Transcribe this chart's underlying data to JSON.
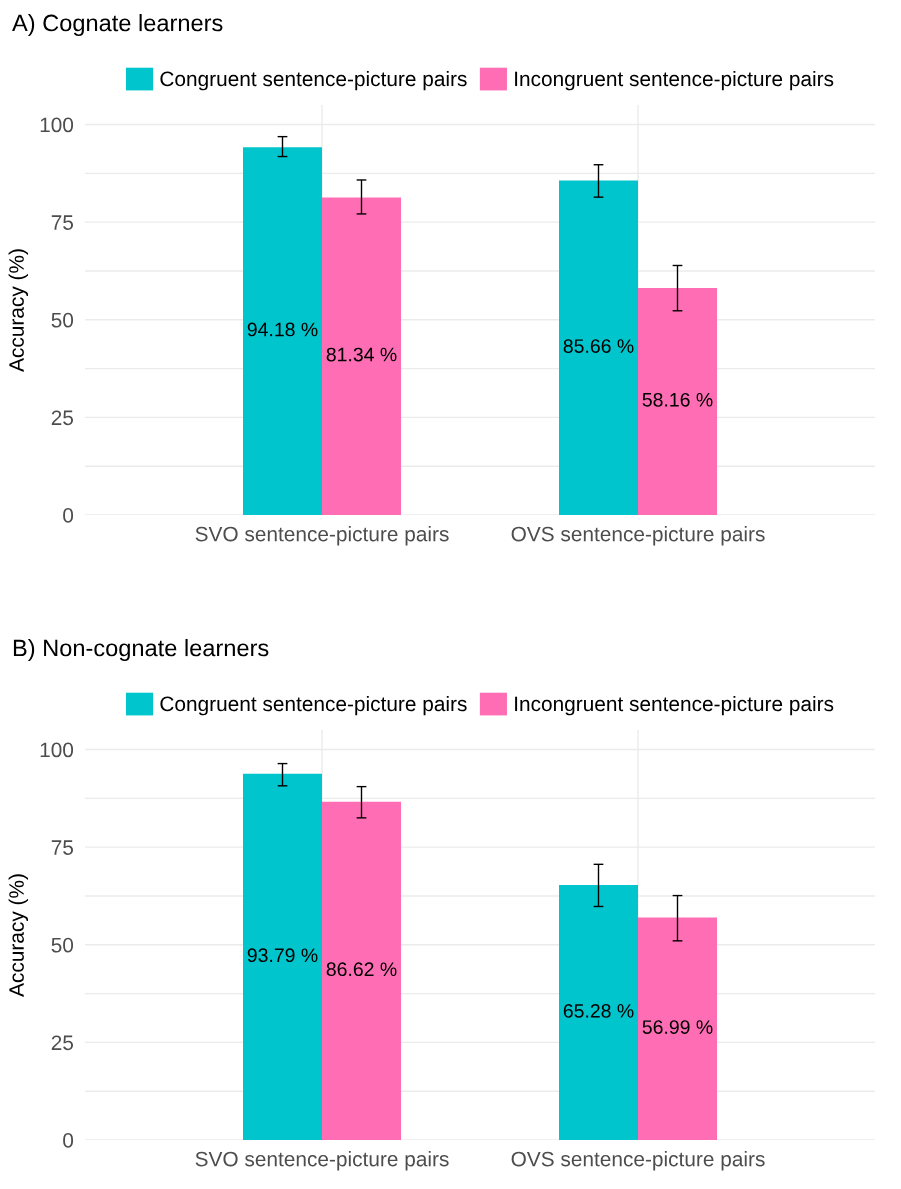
{
  "chart_data": [
    {
      "type": "bar",
      "title": "A) Cognate learners",
      "ylabel": "Accuracy (%)",
      "categories": [
        "SVO sentence-picture pairs",
        "OVS sentence-picture pairs"
      ],
      "series": [
        {
          "name": "Congruent sentence-picture pairs",
          "color": "#00c5cd",
          "values": [
            94.18,
            85.66
          ],
          "errors": [
            [
              91.8,
              96.9
            ],
            [
              81.4,
              89.7
            ]
          ],
          "value_labels": [
            "94.18 %",
            "85.66 %"
          ]
        },
        {
          "name": "Incongruent sentence-picture pairs",
          "color": "#ff6eb4",
          "values": [
            81.34,
            58.16
          ],
          "errors": [
            [
              77.1,
              85.8
            ],
            [
              52.3,
              63.9
            ]
          ],
          "value_labels": [
            "81.34 %",
            "58.16 %"
          ]
        }
      ],
      "ylim": [
        0,
        105
      ],
      "yticks": [
        0,
        {
          "value": 12.5,
          "label": null
        },
        25,
        {
          "value": 37.5,
          "label": null
        },
        50,
        {
          "value": 62.5,
          "label": null
        },
        75,
        {
          "value": 87.5,
          "label": null
        },
        100
      ],
      "grid": true,
      "legend": "top"
    },
    {
      "type": "bar",
      "title": "B) Non-cognate learners",
      "ylabel": "Accuracy (%)",
      "categories": [
        "SVO sentence-picture pairs",
        "OVS sentence-picture pairs"
      ],
      "series": [
        {
          "name": "Congruent sentence-picture pairs",
          "color": "#00c5cd",
          "values": [
            93.79,
            65.28
          ],
          "errors": [
            [
              90.7,
              96.4
            ],
            [
              59.8,
              70.6
            ]
          ],
          "value_labels": [
            "93.79 %",
            "65.28 %"
          ]
        },
        {
          "name": "Incongruent sentence-picture pairs",
          "color": "#ff6eb4",
          "values": [
            86.62,
            56.99
          ],
          "errors": [
            [
              82.5,
              90.5
            ],
            [
              51.0,
              62.6
            ]
          ],
          "value_labels": [
            "86.62 %",
            "56.99 %"
          ]
        }
      ],
      "ylim": [
        0,
        105
      ],
      "yticks": [
        0,
        {
          "value": 12.5,
          "label": null
        },
        25,
        {
          "value": 37.5,
          "label": null
        },
        50,
        {
          "value": 62.5,
          "label": null
        },
        75,
        {
          "value": 87.5,
          "label": null
        },
        100
      ],
      "grid": true,
      "legend": "top"
    }
  ]
}
